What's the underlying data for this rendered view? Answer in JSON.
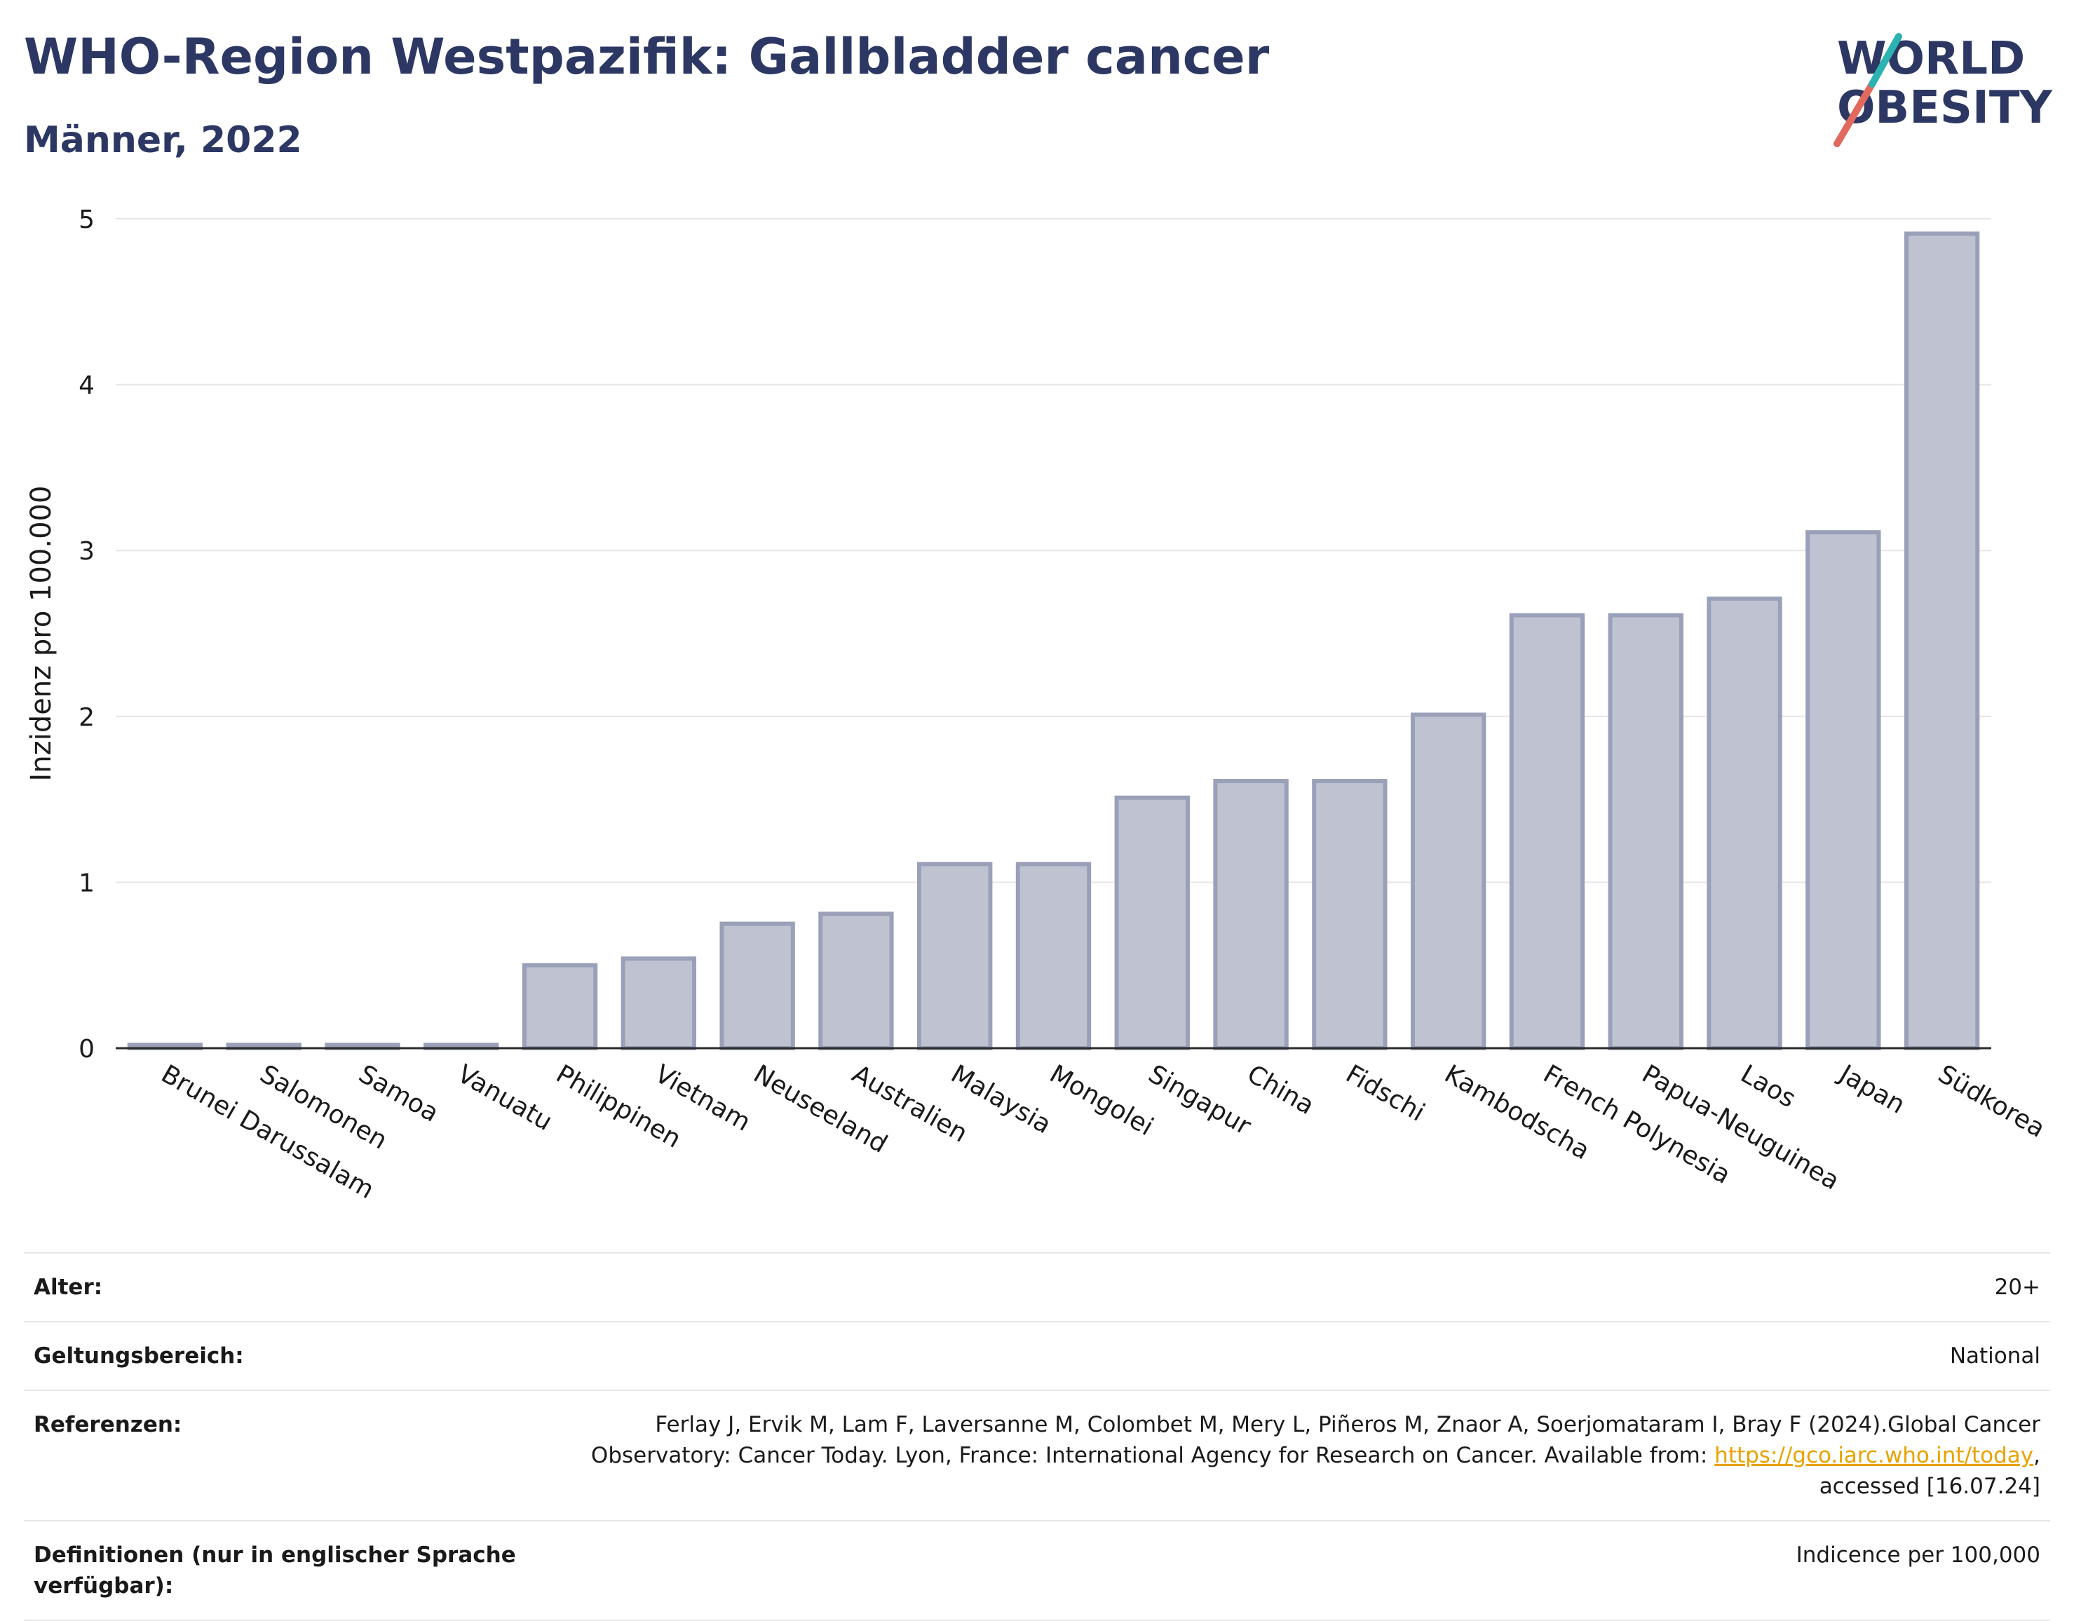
{
  "header": {
    "title": "WHO-Region Westpazifik: Gallbladder cancer",
    "subtitle": "Männer, 2022"
  },
  "logo": {
    "line1": "WORLD",
    "line2": "OBESITY",
    "text_color": "#2c3763",
    "slash_colors": [
      "#e2695d",
      "#2bb3b1"
    ]
  },
  "chart_data": {
    "type": "bar",
    "categories": [
      "Brunei Darussalam",
      "Salomonen",
      "Samoa",
      "Vanuatu",
      "Philippinen",
      "Vietnam",
      "Neuseeland",
      "Australien",
      "Malaysia",
      "Mongolei",
      "Singapur",
      "China",
      "Fidschi",
      "Kambodscha",
      "French Polynesia",
      "Papua-Neuguinea",
      "Laos",
      "Japan",
      "Südkorea"
    ],
    "values": [
      0.02,
      0.02,
      0.02,
      0.02,
      0.5,
      0.54,
      0.75,
      0.81,
      1.11,
      1.11,
      1.51,
      1.61,
      1.61,
      2.01,
      2.61,
      2.61,
      2.71,
      3.11,
      4.91
    ],
    "ylabel": "Inzidenz pro 100.000",
    "xlabel": "",
    "ylim": [
      0,
      5
    ],
    "yticks": [
      0,
      1,
      2,
      3,
      4,
      5
    ],
    "grid": true,
    "bar_color": "#bfc3d1",
    "bar_edge_color": "#9aa0b8"
  },
  "info": [
    {
      "label": "Alter:",
      "value": "20+"
    },
    {
      "label": "Geltungsbereich:",
      "value": "National"
    },
    {
      "label": "Referenzen:",
      "value_pre": "Ferlay J, Ervik M, Lam F, Laversanne M, Colombet M, Mery L, Piñeros M, Znaor A, Soerjomataram I, Bray F (2024).Global Cancer Observatory: Cancer Today. Lyon, France: International Agency for Research on Cancer. Available from: ",
      "link": "https://gco.iarc.who.int/today",
      "value_post": ", accessed [16.07.24]"
    },
    {
      "label": "Definitionen (nur in englischer Sprache verfügbar):",
      "value": "Indicence per 100,000"
    }
  ]
}
